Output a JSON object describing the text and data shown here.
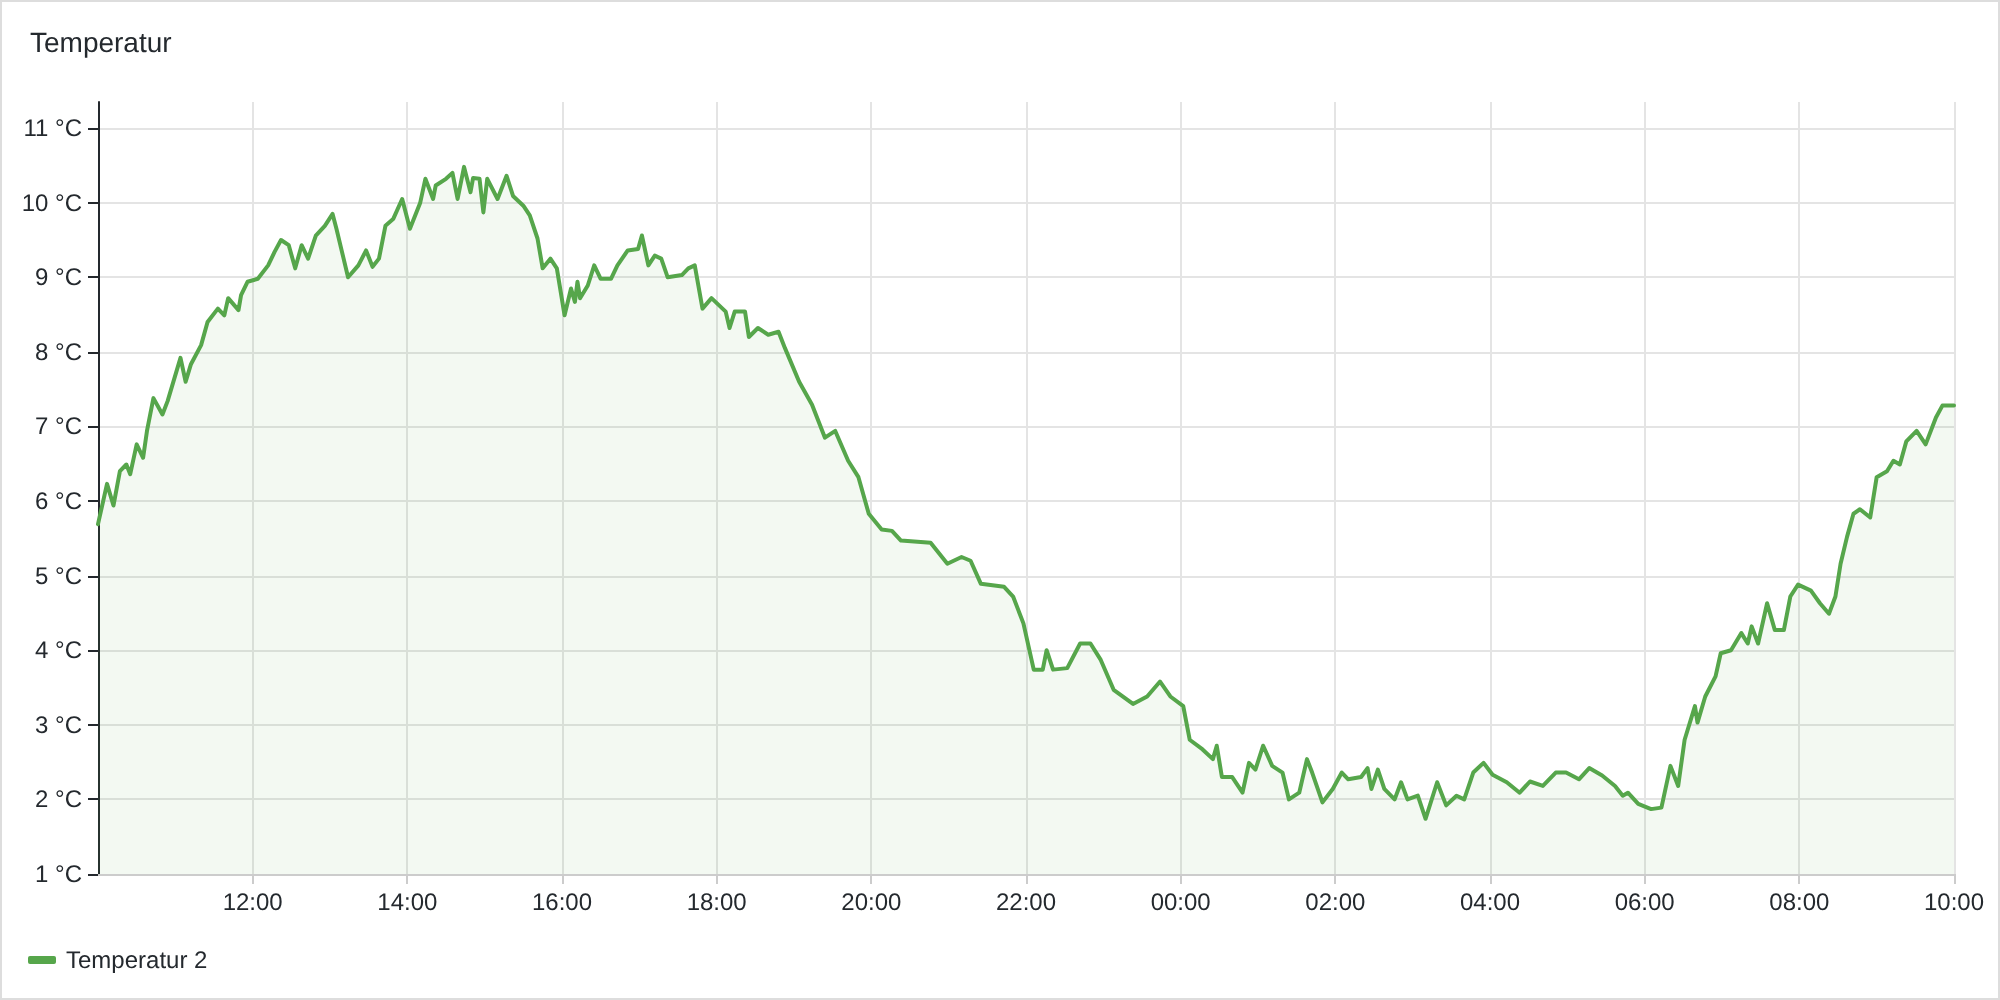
{
  "chart_data": {
    "type": "area",
    "title": "Temperatur",
    "x": [
      "--01-01T10:00",
      "--01-01T10:07",
      "--01-01T10:12",
      "--01-01T10:17",
      "--01-01T10:22",
      "--01-01T10:25",
      "--01-01T10:30",
      "--01-01T10:35",
      "--01-01T10:38",
      "--01-01T10:43",
      "--01-01T10:50",
      "--01-01T10:54",
      "--01-01T11:04",
      "--01-01T11:08",
      "--01-01T11:12",
      "--01-01T11:20",
      "--01-01T11:25",
      "--01-01T11:33",
      "--01-01T11:38",
      "--01-01T11:41",
      "--01-01T11:49",
      "--01-01T11:51",
      "--01-01T11:56",
      "--01-01T12:04",
      "--01-01T12:12",
      "--01-01T12:17",
      "--01-01T12:22",
      "--01-01T12:28",
      "--01-01T12:33",
      "--01-01T12:38",
      "--01-01T12:43",
      "--01-01T12:49",
      "--01-01T12:56",
      "--01-01T13:02",
      "--01-01T13:05",
      "--01-01T13:10",
      "--01-01T13:14",
      "--01-01T13:22",
      "--01-01T13:28",
      "--01-01T13:33",
      "--01-01T13:38",
      "--01-01T13:43",
      "--01-01T13:49",
      "--01-01T13:56",
      "--01-01T14:02",
      "--01-01T14:10",
      "--01-01T14:14",
      "--01-01T14:20",
      "--01-01T14:22",
      "--01-01T14:30",
      "--01-01T14:35",
      "--01-01T14:39",
      "--01-01T14:44",
      "--01-01T14:49",
      "--01-01T14:51",
      "--01-01T14:56",
      "--01-01T14:59",
      "--01-01T15:02",
      "--01-01T15:10",
      "--01-01T15:17",
      "--01-01T15:22",
      "--01-01T15:30",
      "--01-01T15:35",
      "--01-01T15:41",
      "--01-01T15:45",
      "--01-01T15:51",
      "--01-01T15:56",
      "--01-01T16:02",
      "--01-01T16:07",
      "--01-01T16:10",
      "--01-01T16:12",
      "--01-01T16:14",
      "--01-01T16:20",
      "--01-01T16:25",
      "--01-01T16:30",
      "--01-01T16:38",
      "--01-01T16:43",
      "--01-01T16:51",
      "--01-01T16:59",
      "--01-01T17:02",
      "--01-01T17:07",
      "--01-01T17:12",
      "--01-01T17:17",
      "--01-01T17:22",
      "--01-01T17:33",
      "--01-01T17:38",
      "--01-01T17:43",
      "--01-01T17:49",
      "--01-01T17:56",
      "--01-01T18:07",
      "--01-01T18:10",
      "--01-01T18:14",
      "--01-01T18:22",
      "--01-01T18:25",
      "--01-01T18:32",
      "--01-01T18:40",
      "--01-01T18:48",
      "--01-01T18:53",
      "--01-01T19:04",
      "--01-01T19:14",
      "--01-01T19:24",
      "--01-01T19:32",
      "--01-01T19:42",
      "--01-01T19:50",
      "--01-01T19:58",
      "--01-01T20:08",
      "--01-01T20:16",
      "--01-01T20:23",
      "--01-01T20:46",
      "--01-01T20:59",
      "--01-01T21:10",
      "--01-01T21:17",
      "--01-01T21:25",
      "--01-01T21:43",
      "--01-01T21:50",
      "--01-01T21:58",
      "--01-01T22:06",
      "--01-01T22:13",
      "--01-01T22:16",
      "--01-01T22:21",
      "--01-01T22:32",
      "--01-01T22:42",
      "--01-01T22:50",
      "--01-01T22:58",
      "--01-01T23:08",
      "--01-01T23:23",
      "--01-01T23:34",
      "--01-01T23:44",
      "--01-01T23:52",
      "--01-02T00:02",
      "--01-02T00:07",
      "--01-02T00:17",
      "--01-02T00:25",
      "--01-02T00:28",
      "--01-02T00:32",
      "--01-02T00:40",
      "--01-02T00:48",
      "--01-02T00:53",
      "--01-02T00:58",
      "--01-02T01:04",
      "--01-02T01:11",
      "--01-02T01:19",
      "--01-02T01:24",
      "--01-02T01:32",
      "--01-02T01:38",
      "--01-02T01:42",
      "--01-02T01:50",
      "--01-02T01:58",
      "--01-02T02:05",
      "--01-02T02:10",
      "--01-02T02:20",
      "--01-02T02:25",
      "--01-02T02:28",
      "--01-02T02:33",
      "--01-02T02:38",
      "--01-02T02:46",
      "--01-02T02:51",
      "--01-02T02:56",
      "--01-02T03:04",
      "--01-02T03:10",
      "--01-02T03:19",
      "--01-02T03:26",
      "--01-02T03:34",
      "--01-02T03:40",
      "--01-02T03:47",
      "--01-02T03:55",
      "--01-02T04:02",
      "--01-02T04:13",
      "--01-02T04:23",
      "--01-02T04:31",
      "--01-02T04:41",
      "--01-02T04:51",
      "--01-02T04:59",
      "--01-02T05:09",
      "--01-02T05:17",
      "--01-02T05:27",
      "--01-02T05:37",
      "--01-02T05:43",
      "--01-02T05:47",
      "--01-02T05:55",
      "--01-02T06:05",
      "--01-02T06:13",
      "--01-02T06:20",
      "--01-02T06:26",
      "--01-02T06:31",
      "--01-02T06:39",
      "--01-02T06:41",
      "--01-02T06:47",
      "--01-02T06:55",
      "--01-02T06:59",
      "--01-02T07:07",
      "--01-02T07:15",
      "--01-02T07:20",
      "--01-02T07:23",
      "--01-02T07:28",
      "--01-02T07:35",
      "--01-02T07:41",
      "--01-02T07:48",
      "--01-02T07:53",
      "--01-02T07:59",
      "--01-02T08:09",
      "--01-02T08:16",
      "--01-02T08:23",
      "--01-02T08:28",
      "--01-02T08:32",
      "--01-02T08:37",
      "--01-02T08:42",
      "--01-02T08:47",
      "--01-02T08:55",
      "--01-02T09:00",
      "--01-02T09:08",
      "--01-02T09:13",
      "--01-02T09:18",
      "--01-02T09:23",
      "--01-02T09:31",
      "--01-02T09:38",
      "--01-02T09:46",
      "--01-02T09:51",
      "--01-02T10:00"
    ],
    "series": [
      {
        "name": "Temperatur 2",
        "color": "#56a64b",
        "values": [
          5.69,
          6.23,
          5.94,
          6.4,
          6.49,
          6.36,
          6.76,
          6.58,
          6.94,
          7.38,
          7.16,
          7.34,
          7.92,
          7.6,
          7.83,
          8.09,
          8.4,
          8.58,
          8.49,
          8.72,
          8.56,
          8.76,
          8.94,
          8.98,
          9.16,
          9.34,
          9.5,
          9.43,
          9.12,
          9.43,
          9.25,
          9.56,
          9.69,
          9.85,
          9.65,
          9.29,
          9.0,
          9.16,
          9.36,
          9.14,
          9.25,
          9.69,
          9.78,
          10.05,
          9.65,
          10.0,
          10.32,
          10.05,
          10.23,
          10.32,
          10.4,
          10.05,
          10.48,
          10.14,
          10.33,
          10.32,
          9.87,
          10.32,
          10.05,
          10.36,
          10.09,
          9.96,
          9.83,
          9.52,
          9.12,
          9.25,
          9.12,
          8.49,
          8.85,
          8.67,
          8.94,
          8.72,
          8.89,
          9.16,
          8.98,
          8.98,
          9.16,
          9.36,
          9.38,
          9.56,
          9.16,
          9.29,
          9.25,
          9.0,
          9.03,
          9.12,
          9.16,
          8.58,
          8.72,
          8.54,
          8.32,
          8.54,
          8.54,
          8.2,
          8.32,
          8.23,
          8.27,
          8.05,
          7.6,
          7.29,
          6.85,
          6.94,
          6.54,
          6.32,
          5.83,
          5.62,
          5.6,
          5.47,
          5.44,
          5.16,
          5.25,
          5.2,
          4.89,
          4.85,
          4.72,
          4.36,
          3.74,
          3.74,
          4.0,
          3.74,
          3.76,
          4.09,
          4.09,
          3.87,
          3.47,
          3.28,
          3.38,
          3.58,
          3.38,
          3.25,
          2.8,
          2.67,
          2.54,
          2.72,
          2.3,
          2.3,
          2.09,
          2.49,
          2.4,
          2.72,
          2.45,
          2.36,
          2.0,
          2.09,
          2.54,
          2.36,
          1.96,
          2.14,
          2.36,
          2.27,
          2.3,
          2.42,
          2.14,
          2.4,
          2.14,
          2.0,
          2.23,
          2.0,
          2.05,
          1.74,
          2.23,
          1.92,
          2.05,
          2.0,
          2.36,
          2.49,
          2.33,
          2.23,
          2.09,
          2.24,
          2.18,
          2.36,
          2.36,
          2.27,
          2.42,
          2.32,
          2.18,
          2.05,
          2.09,
          1.94,
          1.87,
          1.89,
          2.45,
          2.18,
          2.8,
          3.25,
          3.03,
          3.38,
          3.65,
          3.96,
          4.0,
          4.23,
          4.09,
          4.32,
          4.09,
          4.63,
          4.27,
          4.27,
          4.72,
          4.88,
          4.8,
          4.63,
          4.49,
          4.72,
          5.16,
          5.52,
          5.83,
          5.89,
          5.78,
          6.32,
          6.4,
          6.54,
          6.49,
          6.8,
          6.94,
          6.76,
          7.12,
          7.28,
          7.28
        ]
      }
    ],
    "xlim": [
      "--01-01T10:00",
      "--01-02T10:00"
    ],
    "xticks": [
      {
        "value": "--01-01T12:00",
        "label": "12:00"
      },
      {
        "value": "--01-01T14:00",
        "label": "14:00"
      },
      {
        "value": "--01-01T16:00",
        "label": "16:00"
      },
      {
        "value": "--01-01T18:00",
        "label": "18:00"
      },
      {
        "value": "--01-01T20:00",
        "label": "20:00"
      },
      {
        "value": "--01-01T22:00",
        "label": "22:00"
      },
      {
        "value": "--01-02T00:00",
        "label": "00:00"
      },
      {
        "value": "--01-02T02:00",
        "label": "02:00"
      },
      {
        "value": "--01-02T04:00",
        "label": "04:00"
      },
      {
        "value": "--01-02T06:00",
        "label": "06:00"
      },
      {
        "value": "--01-02T08:00",
        "label": "08:00"
      },
      {
        "value": "--01-02T10:00",
        "label": "10:00"
      }
    ],
    "ylim": [
      1,
      11.35
    ],
    "yticks": [
      {
        "value": 1,
        "label": "1 °C"
      },
      {
        "value": 2,
        "label": "2 °C"
      },
      {
        "value": 3,
        "label": "3 °C"
      },
      {
        "value": 4,
        "label": "4 °C"
      },
      {
        "value": 5,
        "label": "5 °C"
      },
      {
        "value": 6,
        "label": "6 °C"
      },
      {
        "value": 7,
        "label": "7 °C"
      },
      {
        "value": 8,
        "label": "8 °C"
      },
      {
        "value": 9,
        "label": "9 °C"
      },
      {
        "value": 10,
        "label": "10 °C"
      },
      {
        "value": 11,
        "label": "11 °C"
      }
    ],
    "grid": true,
    "legend": "bottom left",
    "marker": "none"
  }
}
